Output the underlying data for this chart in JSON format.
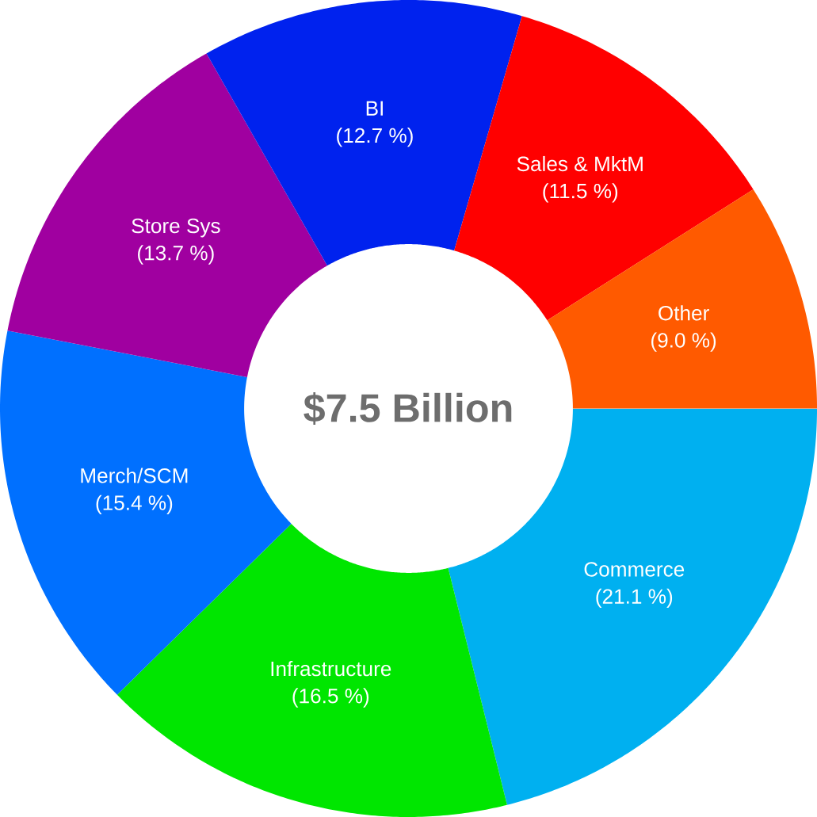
{
  "chart_data": {
    "type": "donut",
    "title": "$7.5 Billion",
    "categories": [
      "Commerce",
      "Infrastructure",
      "Merch/SCM",
      "Store Sys",
      "BI",
      "Sales & MktM",
      "Other"
    ],
    "values": [
      21.1,
      16.5,
      15.4,
      13.7,
      12.7,
      11.5,
      9.0
    ],
    "value_labels": [
      "(21.1 %)",
      "(16.5 %)",
      "(15.4 %)",
      "(13.7 %)",
      "(12.7 %)",
      "(11.5 %)",
      "(9.0 %)"
    ],
    "colors": [
      "#00b0f0",
      "#00e600",
      "#0070ff",
      "#a000a0",
      "#0022ee",
      "#ff0000",
      "#ff5a00"
    ]
  }
}
